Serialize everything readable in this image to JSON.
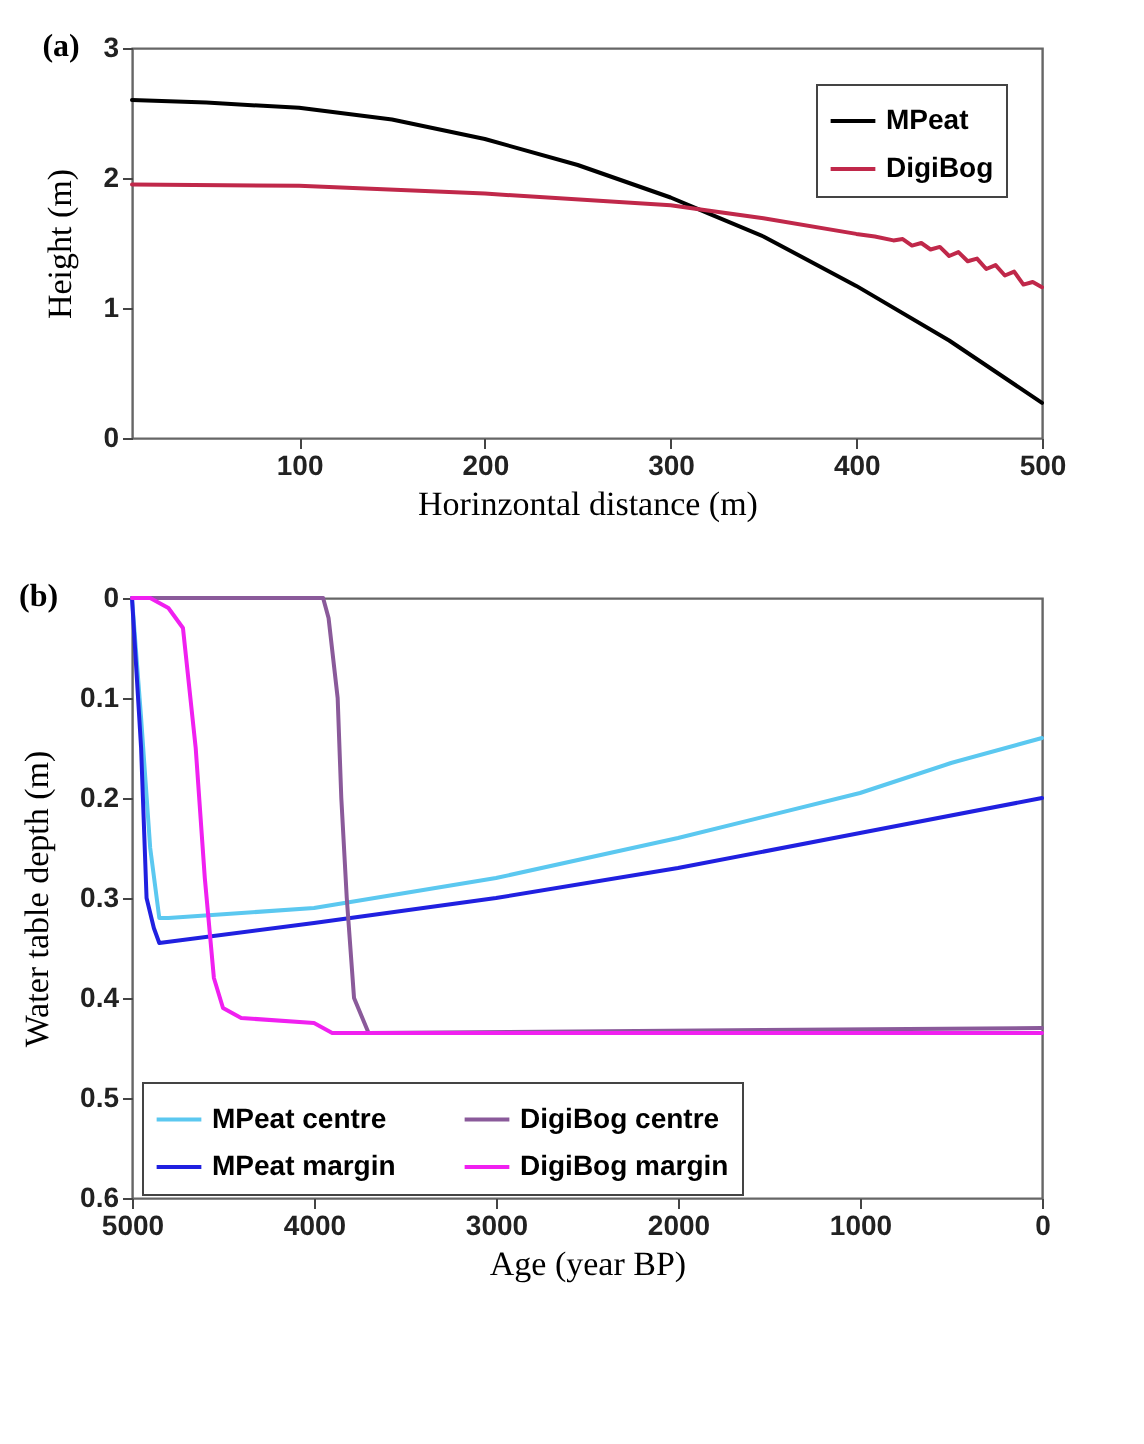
{
  "chart_data": [
    {
      "type": "line",
      "title": "(a)",
      "xlabel": "Horinzontal distance (m)",
      "ylabel": "Height (m)",
      "x": [
        10,
        50,
        100,
        150,
        200,
        250,
        300,
        320,
        350,
        400,
        450,
        500
      ],
      "series": [
        {
          "name": "MPeat",
          "color": "#000000",
          "values": [
            2.6,
            2.58,
            2.54,
            2.45,
            2.3,
            2.1,
            1.85,
            1.73,
            1.55,
            1.17,
            0.75,
            0.27
          ]
        },
        {
          "name": "DigiBog",
          "color": "#c0284a",
          "x": [
            10,
            100,
            200,
            300,
            320,
            350,
            400,
            410,
            420,
            425,
            430,
            435,
            440,
            445,
            450,
            455,
            460,
            465,
            470,
            475,
            480,
            485,
            490,
            495,
            500
          ],
          "values": [
            1.95,
            1.94,
            1.88,
            1.79,
            1.75,
            1.69,
            1.57,
            1.55,
            1.52,
            1.53,
            1.48,
            1.5,
            1.45,
            1.47,
            1.4,
            1.43,
            1.36,
            1.38,
            1.3,
            1.33,
            1.25,
            1.28,
            1.18,
            1.2,
            1.16
          ]
        }
      ],
      "xlim": [
        10,
        500
      ],
      "xticks": [
        100,
        200,
        300,
        400,
        500
      ],
      "ylim": [
        0,
        3
      ],
      "yticks": [
        0,
        1,
        2,
        3
      ],
      "legend": "top right",
      "line_style": "solid"
    },
    {
      "type": "line",
      "title": "(b)",
      "xlabel": "Age (year BP)",
      "ylabel": "Water table depth (m)",
      "series": [
        {
          "name": "MPeat centre",
          "color": "#5bc8f0",
          "x": [
            5000,
            4950,
            4900,
            4850,
            4800,
            4000,
            3000,
            2000,
            1000,
            500,
            0
          ],
          "values": [
            0,
            0.12,
            0.25,
            0.32,
            0.32,
            0.31,
            0.28,
            0.24,
            0.195,
            0.165,
            0.14
          ]
        },
        {
          "name": "MPeat margin",
          "color": "#2020e0",
          "x": [
            5000,
            4950,
            4920,
            4880,
            4850,
            4000,
            3000,
            2000,
            1000,
            0
          ],
          "values": [
            0,
            0.15,
            0.3,
            0.33,
            0.345,
            0.325,
            0.3,
            0.27,
            0.235,
            0.2
          ]
        },
        {
          "name": "DigiBog centre",
          "color": "#8a5a9a",
          "x": [
            5000,
            3950,
            3920,
            3870,
            3850,
            3820,
            3780,
            3700,
            0
          ],
          "values": [
            0,
            0,
            0.02,
            0.1,
            0.2,
            0.3,
            0.4,
            0.435,
            0.43
          ]
        },
        {
          "name": "DigiBog margin",
          "color": "#f020f0",
          "x": [
            5000,
            4900,
            4800,
            4720,
            4650,
            4600,
            4550,
            4500,
            4400,
            4000,
            3950,
            3900,
            0
          ],
          "values": [
            0,
            0,
            0.01,
            0.03,
            0.15,
            0.28,
            0.38,
            0.41,
            0.42,
            0.425,
            0.43,
            0.435,
            0.435
          ]
        }
      ],
      "xlim": [
        5000,
        0
      ],
      "xticks": [
        5000,
        4000,
        3000,
        2000,
        1000,
        0
      ],
      "ylim": [
        0.6,
        0
      ],
      "yticks": [
        0,
        0.1,
        0.2,
        0.3,
        0.4,
        0.5,
        0.6
      ],
      "legend": "bottom",
      "line_style": "solid"
    }
  ]
}
